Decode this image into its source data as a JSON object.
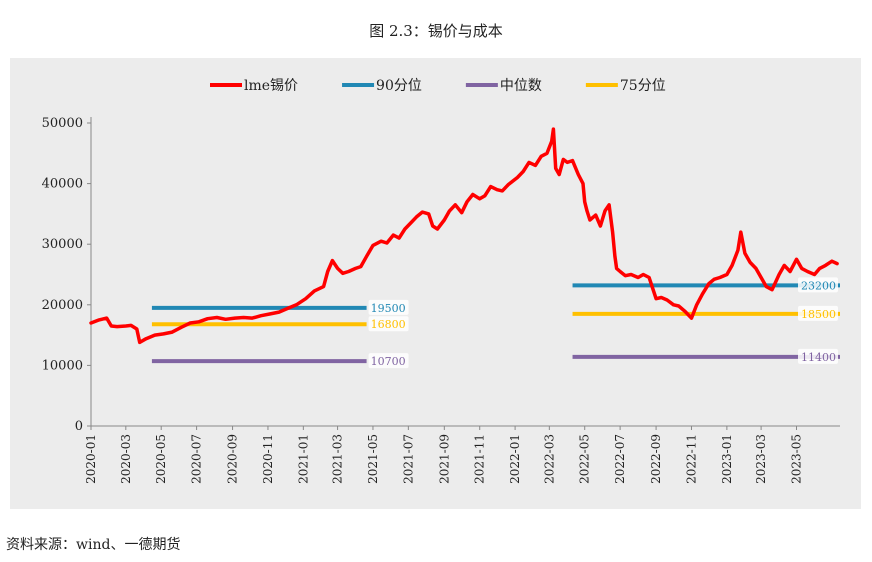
{
  "figure": {
    "title": "图 2.3：锡价与成本",
    "source": "资料来源：wind、一德期货"
  },
  "chart_data": {
    "type": "line",
    "ylim": [
      0,
      50000
    ],
    "yticks": [
      0,
      10000,
      20000,
      30000,
      40000,
      50000
    ],
    "xlim": [
      "2020-01-01",
      "2023-07-15"
    ],
    "xticks": [
      "2020-01",
      "2020-03",
      "2020-05",
      "2020-07",
      "2020-09",
      "2020-11",
      "2021-01",
      "2021-03",
      "2021-05",
      "2021-07",
      "2021-09",
      "2021-11",
      "2022-01",
      "2022-03",
      "2022-05",
      "2022-07",
      "2022-09",
      "2022-11",
      "2023-01",
      "2023-03",
      "2023-05"
    ],
    "legend_position": "top-center",
    "grid": false,
    "series": [
      {
        "name": "lme锡价",
        "color": "#ff0000",
        "kind": "line",
        "points": [
          [
            "2020-01-01",
            17000
          ],
          [
            "2020-01-15",
            17500
          ],
          [
            "2020-01-28",
            17800
          ],
          [
            "2020-02-05",
            16500
          ],
          [
            "2020-02-15",
            16400
          ],
          [
            "2020-03-01",
            16500
          ],
          [
            "2020-03-10",
            16600
          ],
          [
            "2020-03-20",
            16000
          ],
          [
            "2020-03-25",
            13800
          ],
          [
            "2020-04-05",
            14400
          ],
          [
            "2020-04-20",
            15000
          ],
          [
            "2020-05-05",
            15200
          ],
          [
            "2020-05-20",
            15500
          ],
          [
            "2020-06-05",
            16300
          ],
          [
            "2020-06-20",
            17000
          ],
          [
            "2020-07-05",
            17200
          ],
          [
            "2020-07-20",
            17700
          ],
          [
            "2020-08-05",
            17900
          ],
          [
            "2020-08-20",
            17600
          ],
          [
            "2020-09-05",
            17800
          ],
          [
            "2020-09-20",
            17900
          ],
          [
            "2020-10-05",
            17800
          ],
          [
            "2020-10-20",
            18200
          ],
          [
            "2020-11-05",
            18500
          ],
          [
            "2020-11-20",
            18800
          ],
          [
            "2020-12-05",
            19400
          ],
          [
            "2020-12-20",
            20000
          ],
          [
            "2021-01-05",
            21000
          ],
          [
            "2021-01-20",
            22300
          ],
          [
            "2021-02-05",
            23000
          ],
          [
            "2021-02-12",
            25500
          ],
          [
            "2021-02-20",
            27300
          ],
          [
            "2021-03-01",
            26000
          ],
          [
            "2021-03-10",
            25200
          ],
          [
            "2021-03-20",
            25500
          ],
          [
            "2021-04-01",
            26000
          ],
          [
            "2021-04-10",
            26300
          ],
          [
            "2021-04-20",
            28000
          ],
          [
            "2021-05-01",
            29800
          ],
          [
            "2021-05-15",
            30500
          ],
          [
            "2021-05-25",
            30200
          ],
          [
            "2021-06-05",
            31500
          ],
          [
            "2021-06-15",
            31000
          ],
          [
            "2021-06-25",
            32500
          ],
          [
            "2021-07-05",
            33500
          ],
          [
            "2021-07-15",
            34500
          ],
          [
            "2021-07-25",
            35300
          ],
          [
            "2021-08-05",
            35000
          ],
          [
            "2021-08-12",
            33000
          ],
          [
            "2021-08-20",
            32500
          ],
          [
            "2021-09-01",
            34000
          ],
          [
            "2021-09-10",
            35500
          ],
          [
            "2021-09-20",
            36500
          ],
          [
            "2021-10-01",
            35200
          ],
          [
            "2021-10-10",
            37000
          ],
          [
            "2021-10-20",
            38200
          ],
          [
            "2021-11-01",
            37500
          ],
          [
            "2021-11-10",
            38000
          ],
          [
            "2021-11-20",
            39500
          ],
          [
            "2021-12-01",
            39000
          ],
          [
            "2021-12-10",
            38800
          ],
          [
            "2021-12-20",
            39800
          ],
          [
            "2022-01-05",
            41000
          ],
          [
            "2022-01-15",
            42000
          ],
          [
            "2022-01-25",
            43500
          ],
          [
            "2022-02-05",
            43000
          ],
          [
            "2022-02-15",
            44500
          ],
          [
            "2022-02-25",
            45000
          ],
          [
            "2022-03-05",
            47000
          ],
          [
            "2022-03-08",
            49000
          ],
          [
            "2022-03-12",
            42500
          ],
          [
            "2022-03-18",
            41500
          ],
          [
            "2022-03-25",
            44000
          ],
          [
            "2022-04-01",
            43500
          ],
          [
            "2022-04-10",
            43800
          ],
          [
            "2022-04-20",
            41500
          ],
          [
            "2022-04-28",
            40000
          ],
          [
            "2022-05-01",
            37000
          ],
          [
            "2022-05-05",
            35500
          ],
          [
            "2022-05-10",
            34000
          ],
          [
            "2022-05-20",
            34800
          ],
          [
            "2022-05-28",
            33000
          ],
          [
            "2022-06-05",
            35500
          ],
          [
            "2022-06-12",
            36500
          ],
          [
            "2022-06-18",
            32000
          ],
          [
            "2022-06-22",
            28000
          ],
          [
            "2022-06-25",
            26000
          ],
          [
            "2022-07-01",
            25500
          ],
          [
            "2022-07-10",
            24800
          ],
          [
            "2022-07-20",
            25000
          ],
          [
            "2022-08-01",
            24500
          ],
          [
            "2022-08-10",
            25000
          ],
          [
            "2022-08-20",
            24500
          ],
          [
            "2022-09-01",
            21000
          ],
          [
            "2022-09-10",
            21200
          ],
          [
            "2022-09-20",
            20800
          ],
          [
            "2022-10-01",
            20000
          ],
          [
            "2022-10-10",
            19800
          ],
          [
            "2022-10-20",
            19000
          ],
          [
            "2022-11-01",
            17800
          ],
          [
            "2022-11-10",
            20000
          ],
          [
            "2022-11-20",
            21800
          ],
          [
            "2022-12-01",
            23500
          ],
          [
            "2022-12-10",
            24200
          ],
          [
            "2022-12-20",
            24500
          ],
          [
            "2023-01-01",
            25000
          ],
          [
            "2023-01-10",
            26500
          ],
          [
            "2023-01-20",
            29000
          ],
          [
            "2023-01-25",
            32000
          ],
          [
            "2023-02-01",
            28500
          ],
          [
            "2023-02-10",
            27000
          ],
          [
            "2023-02-20",
            26000
          ],
          [
            "2023-03-01",
            24500
          ],
          [
            "2023-03-10",
            23000
          ],
          [
            "2023-03-20",
            22500
          ],
          [
            "2023-04-01",
            25000
          ],
          [
            "2023-04-10",
            26500
          ],
          [
            "2023-04-20",
            25500
          ],
          [
            "2023-05-01",
            27500
          ],
          [
            "2023-05-10",
            26000
          ],
          [
            "2023-05-20",
            25500
          ],
          [
            "2023-06-01",
            25000
          ],
          [
            "2023-06-10",
            26000
          ],
          [
            "2023-06-20",
            26500
          ],
          [
            "2023-07-01",
            27200
          ],
          [
            "2023-07-10",
            26800
          ]
        ]
      },
      {
        "name": "90分位",
        "color": "#2188b4",
        "kind": "hline",
        "segments": [
          {
            "x0": "2020-04-15",
            "x1": "2021-04-20",
            "y": 19500
          },
          {
            "x0": "2022-04-10",
            "x1": "2023-07-15",
            "y": 23200
          }
        ]
      },
      {
        "name": "中位数",
        "color": "#8064a2",
        "kind": "hline",
        "segments": [
          {
            "x0": "2020-04-15",
            "x1": "2021-04-20",
            "y": 10700
          },
          {
            "x0": "2022-04-10",
            "x1": "2023-07-15",
            "y": 11400
          }
        ]
      },
      {
        "name": "75分位",
        "color": "#ffc000",
        "kind": "hline",
        "segments": [
          {
            "x0": "2020-04-15",
            "x1": "2021-04-20",
            "y": 16800
          },
          {
            "x0": "2022-04-10",
            "x1": "2023-07-15",
            "y": 18500
          }
        ]
      }
    ]
  }
}
